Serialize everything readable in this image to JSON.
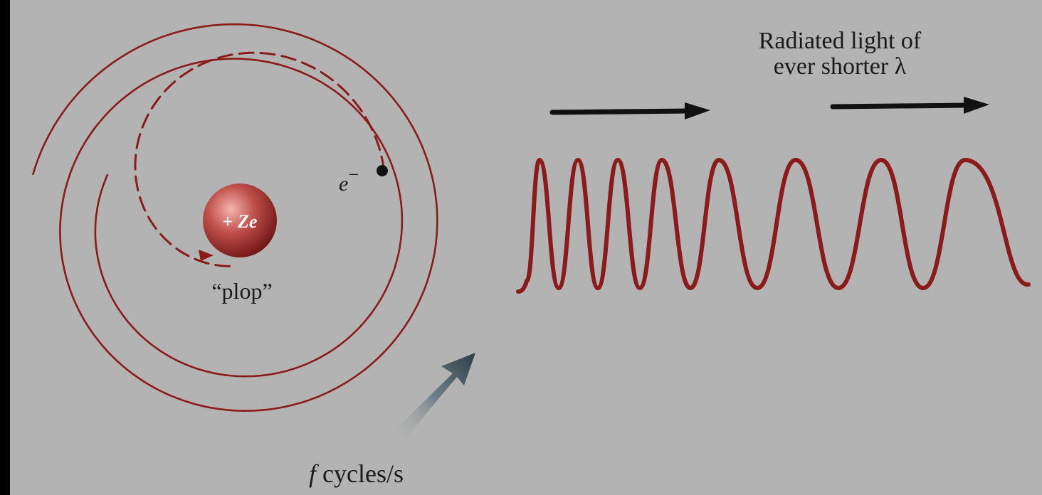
{
  "labels": {
    "radiated_line1": "Radiated light of",
    "radiated_line2": "ever shorter λ",
    "electron_symbol": "e",
    "electron_charge": "−",
    "nucleus_sign": "+ ",
    "nucleus_symbol": "Ze",
    "plop": "“plop”",
    "frequency_symbol": "f",
    "frequency_unit": " cycles/s"
  },
  "colors": {
    "background_panel": "#b3b3b3",
    "frame": "#000000",
    "spiral": "#8b1a1a",
    "wave": "#8b1a1a",
    "nucleus": "#b84a4a",
    "arrows": "#111111",
    "rotation_arrow": "#4b5a62"
  }
}
